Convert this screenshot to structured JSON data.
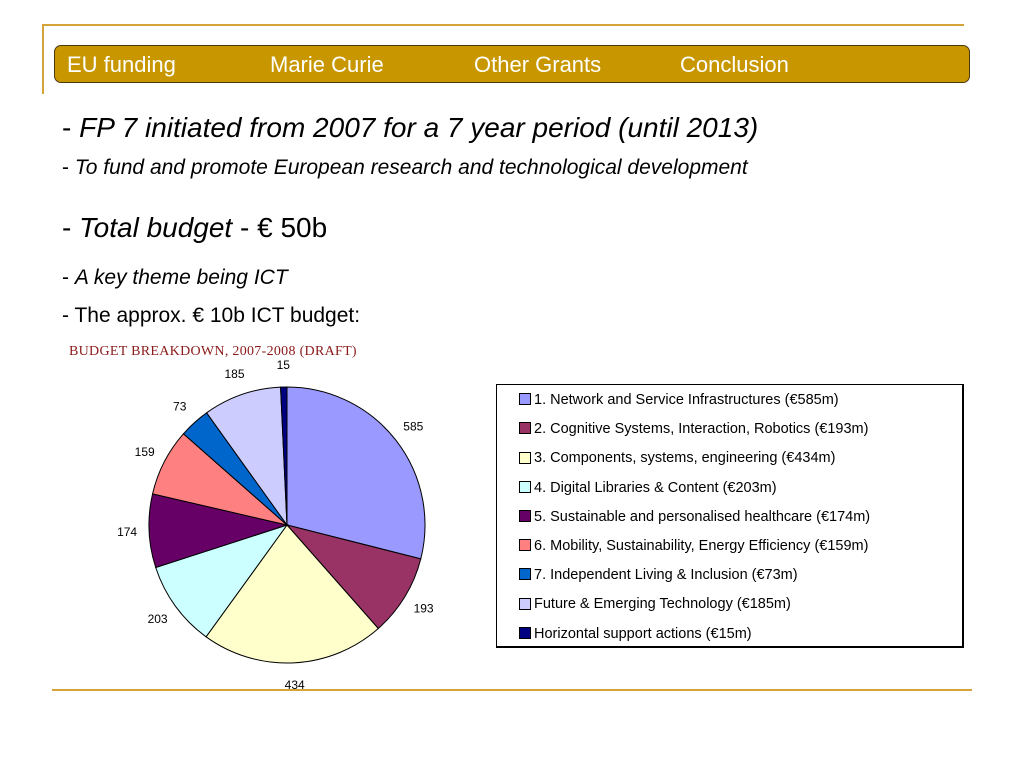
{
  "nav": {
    "items": [
      "EU funding",
      "Marie Curie",
      "Other Grants",
      "Conclusion"
    ]
  },
  "bullets": {
    "b1_dash": "- ",
    "b1_text": "FP 7 initiated from 2007 for a 7 year period (until 2013)",
    "b2_dash": "- ",
    "b2_text": "To fund and promote European research and technological development",
    "b3_dash": "- ",
    "b3_italic": "Total budget",
    "b3_rest": " - € 50b",
    "b4_dash": "- ",
    "b4_text": "A key theme being ICT",
    "b5_text": "- The approx. € 10b ICT budget:"
  },
  "chart_data": {
    "type": "pie",
    "title": "BUDGET BREAKDOWN, 2007-2008 (DRAFT)",
    "slices": [
      {
        "value": 585,
        "label": "585",
        "legend": "1. Network and Service Infrastructures (€585m)",
        "color": "#9999ff"
      },
      {
        "value": 193,
        "label": "193",
        "legend": "2. Cognitive Systems, Interaction, Robotics (€193m)",
        "color": "#993366"
      },
      {
        "value": 434,
        "label": "434",
        "legend": "3. Components, systems, engineering (€434m)",
        "color": "#ffffcc"
      },
      {
        "value": 203,
        "label": "203",
        "legend": "4. Digital Libraries & Content (€203m)",
        "color": "#ccffff"
      },
      {
        "value": 174,
        "label": "174",
        "legend": "5. Sustainable and personalised healthcare (€174m)",
        "color": "#660066"
      },
      {
        "value": 159,
        "label": "159",
        "legend": "6. Mobility, Sustainability, Energy Efficiency (€159m)",
        "color": "#ff8080"
      },
      {
        "value": 73,
        "label": "73",
        "legend": "7. Independent Living & Inclusion (€73m)",
        "color": "#0066cc"
      },
      {
        "value": 185,
        "label": "185",
        "legend": "Future & Emerging Technology (€185m)",
        "color": "#ccccff"
      },
      {
        "value": 15,
        "label": "15",
        "legend": "Horizontal support actions (€15m)",
        "color": "#000080"
      }
    ]
  }
}
